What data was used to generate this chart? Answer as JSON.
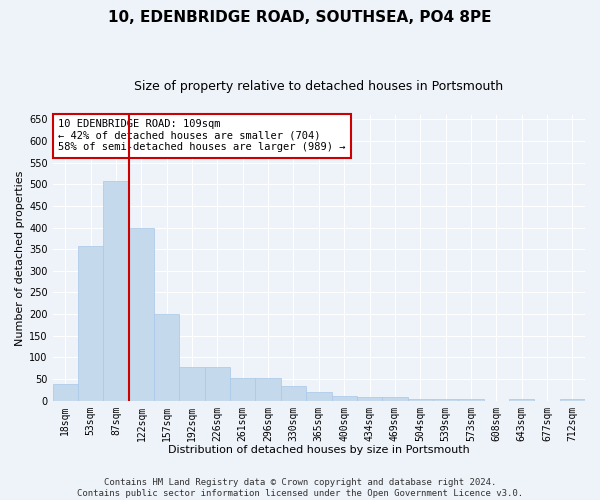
{
  "title": "10, EDENBRIDGE ROAD, SOUTHSEA, PO4 8PE",
  "subtitle": "Size of property relative to detached houses in Portsmouth",
  "xlabel": "Distribution of detached houses by size in Portsmouth",
  "ylabel": "Number of detached properties",
  "bar_color": "#c5d9ed",
  "bar_edge_color": "#a8c8e8",
  "vline_color": "#cc0000",
  "vline_x_index": 2,
  "categories": [
    "18sqm",
    "53sqm",
    "87sqm",
    "122sqm",
    "157sqm",
    "192sqm",
    "226sqm",
    "261sqm",
    "296sqm",
    "330sqm",
    "365sqm",
    "400sqm",
    "434sqm",
    "469sqm",
    "504sqm",
    "539sqm",
    "573sqm",
    "608sqm",
    "643sqm",
    "677sqm",
    "712sqm"
  ],
  "values": [
    38,
    357,
    507,
    400,
    200,
    78,
    78,
    52,
    52,
    33,
    20,
    11,
    8,
    8,
    5,
    4,
    4,
    0,
    4,
    0,
    4
  ],
  "ylim": [
    0,
    660
  ],
  "yticks": [
    0,
    50,
    100,
    150,
    200,
    250,
    300,
    350,
    400,
    450,
    500,
    550,
    600,
    650
  ],
  "annotation_line1": "10 EDENBRIDGE ROAD: 109sqm",
  "annotation_line2": "← 42% of detached houses are smaller (704)",
  "annotation_line3": "58% of semi-detached houses are larger (989) →",
  "annotation_box_color": "#ffffff",
  "annotation_box_edge": "#cc0000",
  "footer_line1": "Contains HM Land Registry data © Crown copyright and database right 2024.",
  "footer_line2": "Contains public sector information licensed under the Open Government Licence v3.0.",
  "background_color": "#eef2f9",
  "grid_color": "#ffffff",
  "title_fontsize": 11,
  "subtitle_fontsize": 9,
  "axis_label_fontsize": 8,
  "tick_fontsize": 7,
  "annotation_fontsize": 7.5,
  "footer_fontsize": 6.5
}
